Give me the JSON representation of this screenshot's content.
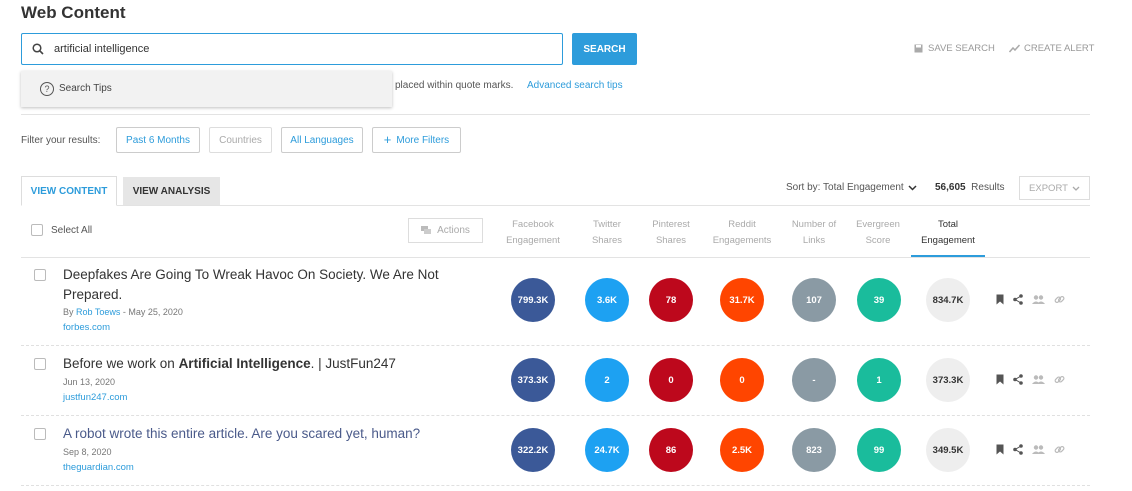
{
  "page": {
    "title": "Web Content"
  },
  "search": {
    "value": "artificial intelligence",
    "button_label": "SEARCH",
    "save_search_label": "SAVE SEARCH",
    "create_alert_label": "CREATE ALERT",
    "tips_label": "Search Tips",
    "hint_text": "placed within quote marks.",
    "hint_link": "Advanced search tips"
  },
  "filters": {
    "label": "Filter your results:",
    "buttons": [
      "Past 6 Months",
      "Countries",
      "All Languages",
      "More Filters"
    ]
  },
  "tabs": {
    "active": "VIEW CONTENT",
    "inactive": "VIEW ANALYSIS"
  },
  "sort": {
    "label": "Sort by: Total Engagement",
    "results_count": "56,605",
    "results_label": "Results",
    "export_label": "EXPORT"
  },
  "table": {
    "select_all_label": "Select All",
    "actions_label": "Actions",
    "columns": [
      {
        "line1": "Facebook",
        "line2": "Engagement"
      },
      {
        "line1": "Twitter",
        "line2": "Shares"
      },
      {
        "line1": "Pinterest",
        "line2": "Shares"
      },
      {
        "line1": "Reddit",
        "line2": "Engagements"
      },
      {
        "line1": "Number of",
        "line2": "Links"
      },
      {
        "line1": "Evergreen",
        "line2": "Score"
      },
      {
        "line1": "Total",
        "line2": "Engagement"
      }
    ],
    "colors": {
      "facebook": "#3b5998",
      "twitter": "#1da1f2",
      "pinterest": "#bd081c",
      "reddit": "#ff4500",
      "links": "#8a9aa4",
      "evergreen": "#1abc9c"
    },
    "rows": [
      {
        "title": "Deepfakes Are Going To Wreak Havoc On Society. We Are Not Prepared.",
        "by": "By",
        "author": "Rob Toews",
        "date": " - May 25, 2020",
        "domain": "forbes.com",
        "facebook": "799.3K",
        "twitter": "3.6K",
        "pinterest": "78",
        "reddit": "31.7K",
        "links": "107",
        "evergreen": "39",
        "total": "834.7K"
      },
      {
        "title_pre": "Before we work on ",
        "title_bold": "Artificial Intelligence",
        "title_post": ". | JustFun247",
        "date": "Jun 13, 2020",
        "domain": "justfun247.com",
        "facebook": "373.3K",
        "twitter": "2",
        "pinterest": "0",
        "reddit": "0",
        "links": "-",
        "evergreen": "1",
        "total": "373.3K"
      },
      {
        "title": "A robot wrote this entire article. Are you scared yet, human?",
        "date": "Sep 8, 2020",
        "domain": "theguardian.com",
        "facebook": "322.2K",
        "twitter": "24.7K",
        "pinterest": "86",
        "reddit": "2.5K",
        "links": "823",
        "evergreen": "99",
        "total": "349.5K"
      }
    ]
  },
  "icons": [
    "search-icon",
    "question-icon",
    "save-icon",
    "alert-icon",
    "plus-icon",
    "chevron-down-icon",
    "chat-icon",
    "bookmark-icon",
    "share-icon",
    "users-icon",
    "link-icon"
  ]
}
